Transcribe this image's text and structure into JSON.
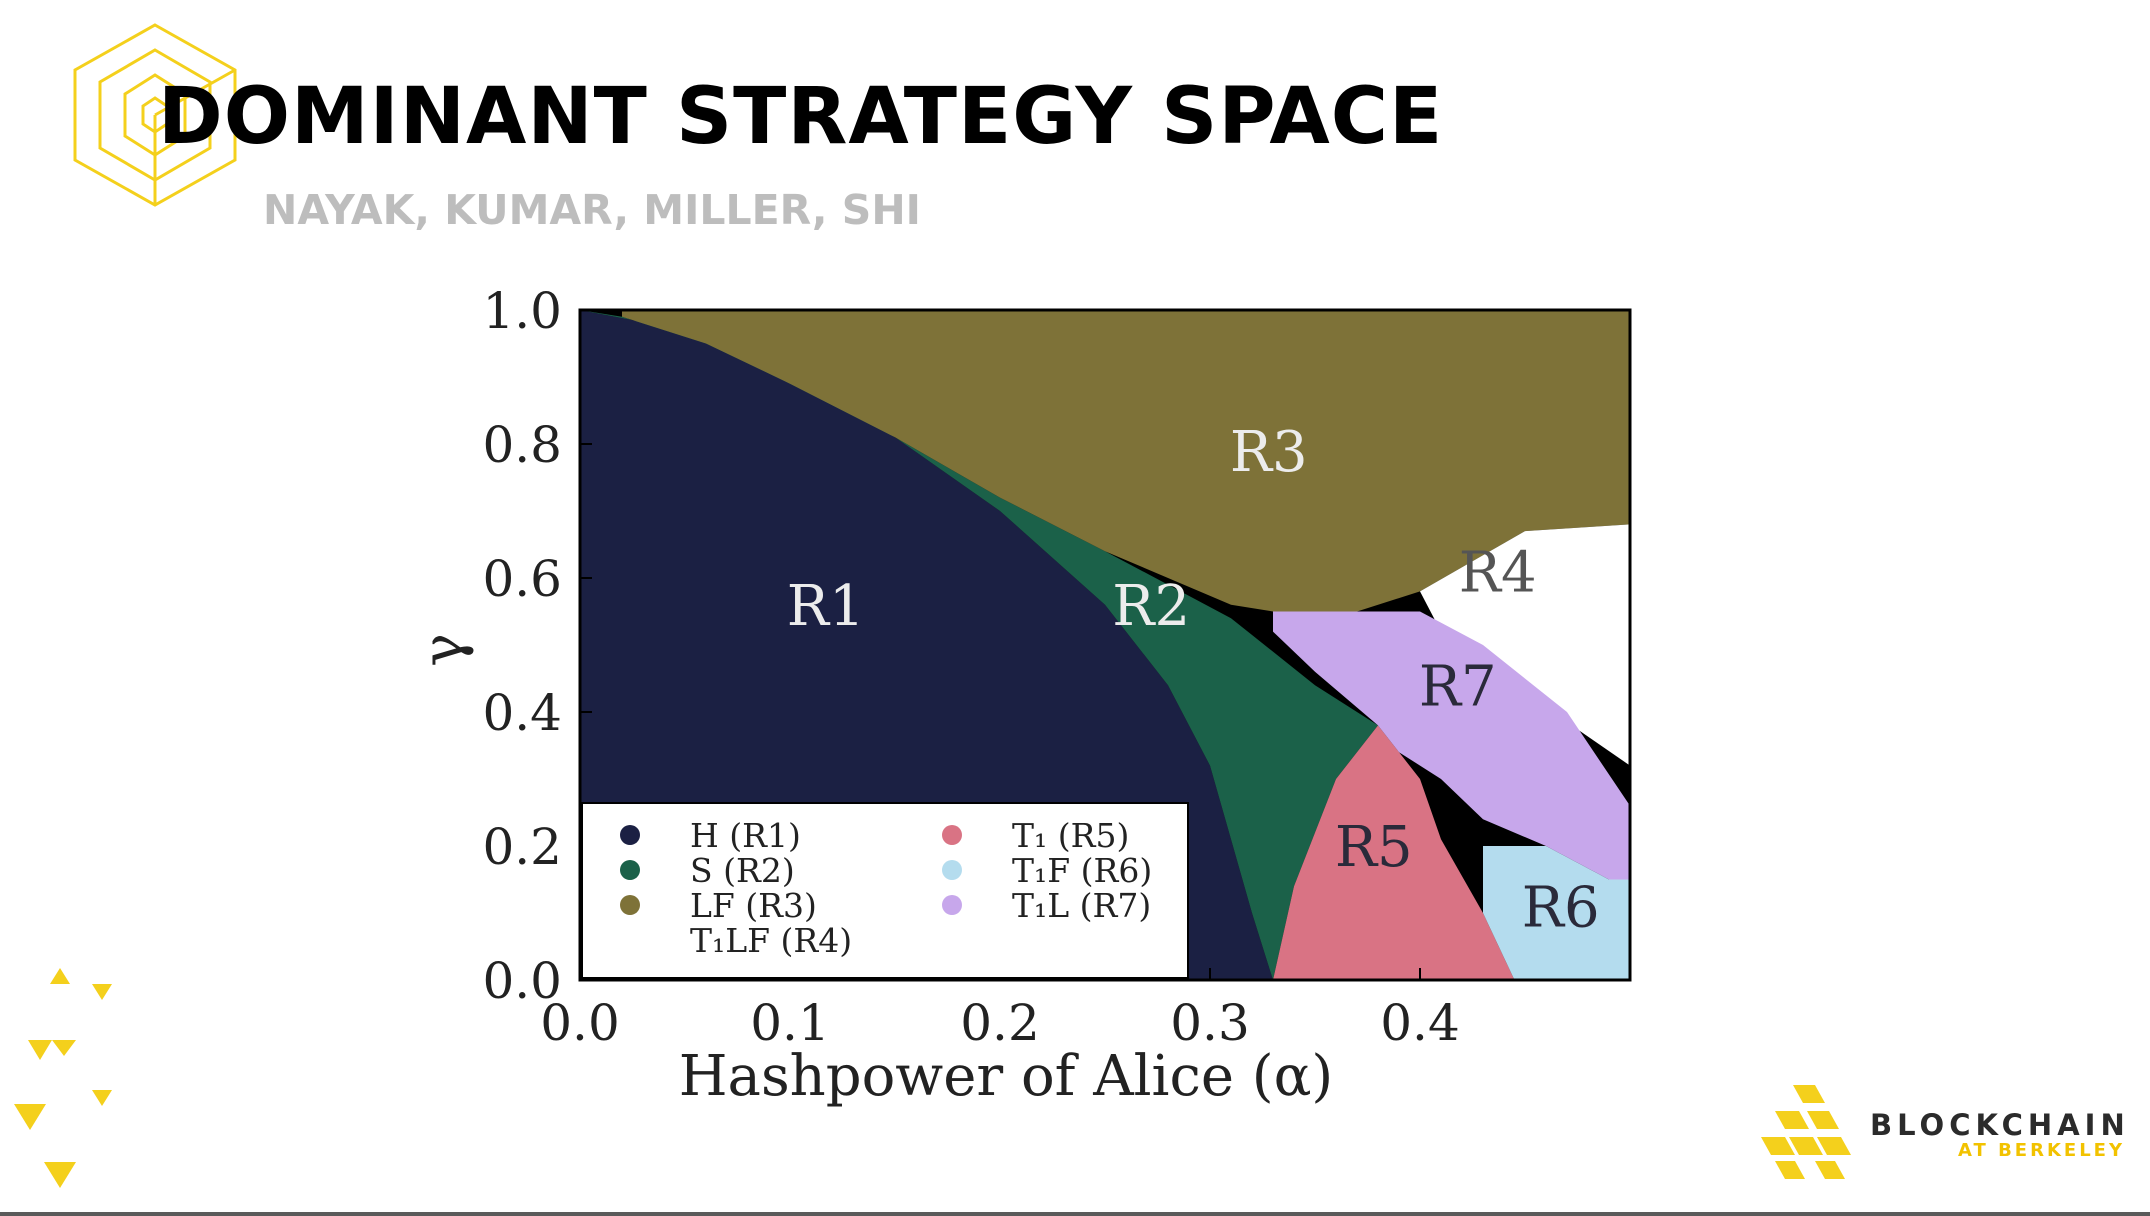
{
  "slide": {
    "title": "DOMINANT STRATEGY SPACE",
    "subtitle": "NAYAK, KUMAR, MILLER, SHI",
    "brand": {
      "name": "BLOCKCHAIN",
      "sub": "AT BERKELEY"
    },
    "accent_color": "#f4d01c"
  },
  "chart_data": {
    "type": "heatmap",
    "title": "",
    "xlabel": "Hashpower of Alice (α)",
    "ylabel": "γ",
    "xlim": [
      0.0,
      0.5
    ],
    "ylim": [
      0.0,
      1.0
    ],
    "x_ticks": [
      "0.0",
      "0.1",
      "0.2",
      "0.3",
      "0.4"
    ],
    "y_ticks": [
      "0.0",
      "0.2",
      "0.4",
      "0.6",
      "0.8",
      "1.0"
    ],
    "grid": false,
    "legend_position": "bottom-left",
    "regions": [
      {
        "id": "R1",
        "legend": "H (R1)",
        "color": "#1b2043",
        "label_at": [
          0.117,
          0.53
        ],
        "polygon": [
          [
            0,
            0
          ],
          [
            0,
            1
          ],
          [
            0.05,
            0.97
          ],
          [
            0.1,
            0.9
          ],
          [
            0.15,
            0.81
          ],
          [
            0.2,
            0.7
          ],
          [
            0.25,
            0.56
          ],
          [
            0.28,
            0.44
          ],
          [
            0.3,
            0.32
          ],
          [
            0.31,
            0.21
          ],
          [
            0.32,
            0.1
          ],
          [
            0.33,
            0
          ]
        ]
      },
      {
        "id": "R2",
        "legend": "S (R2)",
        "color": "#1b6149",
        "label_at": [
          0.272,
          0.53
        ],
        "polygon": [
          [
            0,
            1
          ],
          [
            0.05,
            0.97
          ],
          [
            0.1,
            0.9
          ],
          [
            0.15,
            0.81
          ],
          [
            0.2,
            0.7
          ],
          [
            0.25,
            0.56
          ],
          [
            0.28,
            0.44
          ],
          [
            0.3,
            0.32
          ],
          [
            0.31,
            0.21
          ],
          [
            0.32,
            0.1
          ],
          [
            0.33,
            0
          ],
          [
            0.34,
            0.14
          ],
          [
            0.36,
            0.3
          ],
          [
            0.38,
            0.38
          ],
          [
            0.35,
            0.44
          ],
          [
            0.31,
            0.54
          ],
          [
            0.25,
            0.64
          ],
          [
            0.2,
            0.72
          ],
          [
            0.15,
            0.81
          ],
          [
            0.1,
            0.89
          ],
          [
            0.06,
            0.95
          ],
          [
            0.02,
            0.99
          ]
        ]
      },
      {
        "id": "R3",
        "legend": "LF (R3)",
        "color": "#7e7238",
        "label_at": [
          0.328,
          0.76
        ],
        "polygon": [
          [
            0.02,
            1
          ],
          [
            0.5,
            1
          ],
          [
            0.5,
            0.68
          ],
          [
            0.45,
            0.67
          ],
          [
            0.4,
            0.58
          ],
          [
            0.37,
            0.55
          ],
          [
            0.33,
            0.55
          ],
          [
            0.31,
            0.56
          ],
          [
            0.25,
            0.64
          ],
          [
            0.2,
            0.72
          ],
          [
            0.15,
            0.81
          ],
          [
            0.1,
            0.89
          ],
          [
            0.06,
            0.95
          ],
          [
            0.02,
            0.99
          ]
        ]
      },
      {
        "id": "R4",
        "legend": "T₁LF (R4)",
        "color": "#ffffff",
        "label_at": [
          0.437,
          0.58
        ],
        "polygon": [
          [
            0.45,
            0.67
          ],
          [
            0.5,
            0.68
          ],
          [
            0.5,
            0.32
          ],
          [
            0.44,
            0.45
          ],
          [
            0.41,
            0.52
          ],
          [
            0.4,
            0.58
          ]
        ]
      },
      {
        "id": "R5",
        "legend": "T₁ (R5)",
        "color": "#d97384",
        "label_at": [
          0.378,
          0.17
        ],
        "polygon": [
          [
            0.33,
            0
          ],
          [
            0.445,
            0
          ],
          [
            0.43,
            0.1
          ],
          [
            0.41,
            0.21
          ],
          [
            0.4,
            0.3
          ],
          [
            0.38,
            0.38
          ],
          [
            0.36,
            0.3
          ],
          [
            0.34,
            0.14
          ]
        ]
      },
      {
        "id": "R6",
        "legend": "T₁F (R6)",
        "color": "#b4dcee",
        "label_at": [
          0.467,
          0.08
        ],
        "polygon": [
          [
            0.445,
            0
          ],
          [
            0.5,
            0
          ],
          [
            0.5,
            0.15
          ],
          [
            0.49,
            0.15
          ],
          [
            0.46,
            0.2
          ],
          [
            0.43,
            0.2
          ],
          [
            0.43,
            0.1
          ]
        ]
      },
      {
        "id": "R7",
        "legend": "T₁L (R7)",
        "color": "#c7a7eb",
        "label_at": [
          0.418,
          0.41
        ],
        "polygon": [
          [
            0.33,
            0.55
          ],
          [
            0.37,
            0.55
          ],
          [
            0.4,
            0.55
          ],
          [
            0.43,
            0.5
          ],
          [
            0.47,
            0.4
          ],
          [
            0.5,
            0.26
          ],
          [
            0.5,
            0.15
          ],
          [
            0.49,
            0.15
          ],
          [
            0.46,
            0.2
          ],
          [
            0.43,
            0.24
          ],
          [
            0.41,
            0.3
          ],
          [
            0.39,
            0.34
          ],
          [
            0.38,
            0.38
          ],
          [
            0.35,
            0.46
          ],
          [
            0.33,
            0.52
          ]
        ]
      }
    ]
  }
}
